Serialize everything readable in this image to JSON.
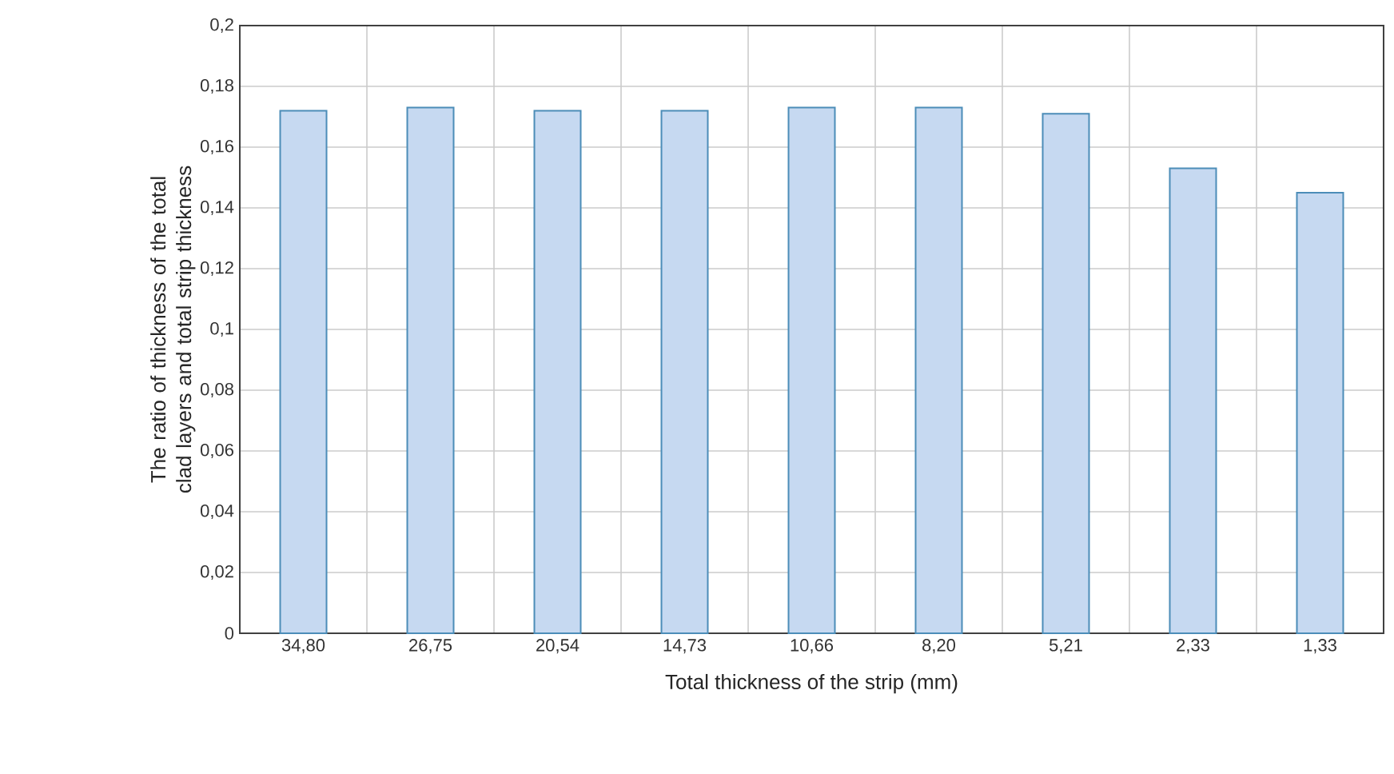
{
  "chart_data": {
    "type": "bar",
    "xlabel": "Total thickness of the strip (mm)",
    "ylabel": "The ratio of thickness of the total clad layers and total strip thickness",
    "categories": [
      "34,80",
      "26,75",
      "20,54",
      "14,73",
      "10,66",
      "8,20",
      "5,21",
      "2,33",
      "1,33"
    ],
    "values": [
      0.172,
      0.173,
      0.172,
      0.172,
      0.173,
      0.173,
      0.171,
      0.153,
      0.145
    ],
    "color": "#c6d9f1",
    "ylim": [
      0,
      0.2
    ],
    "yticks": [
      0,
      {
        "value": 0.02,
        "label": "0,02"
      },
      {
        "value": 0.04,
        "label": "0,04"
      },
      {
        "value": 0.06,
        "label": "0,06"
      },
      {
        "value": 0.08,
        "label": "0,08"
      },
      {
        "value": 0.1,
        "label": "0,1"
      },
      {
        "value": 0.12,
        "label": "0,12"
      },
      {
        "value": 0.14,
        "label": "0,14"
      },
      {
        "value": 0.16,
        "label": "0,16"
      },
      {
        "value": 0.18,
        "label": "0,18"
      },
      {
        "value": 0.2,
        "label": "0,2"
      }
    ],
    "grid": true
  }
}
